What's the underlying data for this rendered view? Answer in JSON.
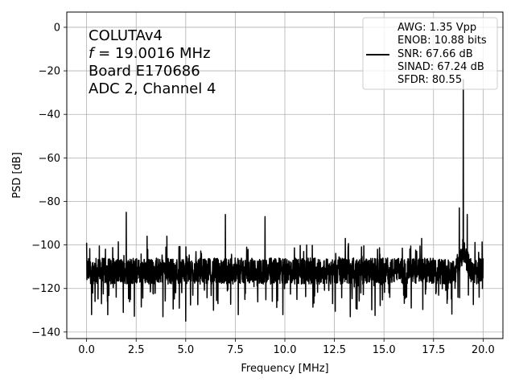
{
  "chart_data": {
    "type": "line",
    "xlabel": "Frequency [MHz]",
    "ylabel": "PSD [dB]",
    "xlim": [
      -1.0,
      21.0
    ],
    "ylim": [
      -143,
      7
    ],
    "xticks": [
      0.0,
      2.5,
      5.0,
      7.5,
      10.0,
      12.5,
      15.0,
      17.5,
      20.0
    ],
    "xtick_labels": [
      "0.0",
      "2.5",
      "5.0",
      "7.5",
      "10.0",
      "12.5",
      "15.0",
      "17.5",
      "20.0"
    ],
    "yticks": [
      0,
      -20,
      -40,
      -60,
      -80,
      -100,
      -120,
      -140
    ],
    "ytick_labels": [
      "0",
      "−20",
      "−40",
      "−60",
      "−80",
      "−100",
      "−120",
      "−140"
    ],
    "grid": true,
    "legend_position": "upper-right",
    "annotation_lines": [
      "COLUTAv4",
      "f = 19.0016 MHz",
      "Board E170686",
      "ADC 2, Channel 4"
    ],
    "legend_lines": [
      "AWG: 1.35 Vpp",
      "ENOB: 10.88 bits",
      "SNR: 67.66 dB",
      "SINAD: 67.24 dB",
      "SFDR: 80.55"
    ],
    "series": [
      {
        "color": "#000000",
        "noise_floor_db": -112,
        "fundamental": {
          "x": 19.0016,
          "y": -24
        },
        "spurs": [
          {
            "x": 0.0,
            "y": -99
          },
          {
            "x": 2.0,
            "y": -85
          },
          {
            "x": 3.05,
            "y": -96
          },
          {
            "x": 4.0,
            "y": -101
          },
          {
            "x": 4.05,
            "y": -96
          },
          {
            "x": 7.0,
            "y": -86
          },
          {
            "x": 9.0,
            "y": -87
          },
          {
            "x": 11.1,
            "y": -100
          },
          {
            "x": 13.05,
            "y": -97
          },
          {
            "x": 16.9,
            "y": -97
          },
          {
            "x": 18.8,
            "y": -83
          },
          {
            "x": 19.2,
            "y": -86
          }
        ],
        "dips": [
          {
            "x": 0.25,
            "y": -132
          },
          {
            "x": 0.75,
            "y": -127
          },
          {
            "x": 1.05,
            "y": -126
          },
          {
            "x": 3.85,
            "y": -133
          },
          {
            "x": 5.0,
            "y": -135
          },
          {
            "x": 6.4,
            "y": -130
          },
          {
            "x": 7.65,
            "y": -132
          },
          {
            "x": 9.9,
            "y": -132
          },
          {
            "x": 13.3,
            "y": -133
          },
          {
            "x": 18.2,
            "y": -125
          },
          {
            "x": 19.8,
            "y": -124
          }
        ]
      }
    ]
  }
}
